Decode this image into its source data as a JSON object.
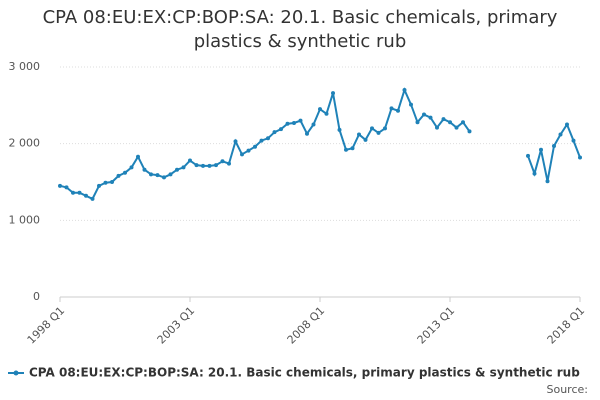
{
  "chart_data": {
    "type": "line",
    "title": "CPA 08:EU:EX:CP:BOP:SA: 20.1. Basic chemicals, primary plastics & synthetic rub",
    "source": "Source:",
    "categories": [
      "1998 Q1",
      null,
      null,
      null,
      null,
      null,
      null,
      null,
      null,
      null,
      null,
      null,
      null,
      null,
      null,
      null,
      null,
      null,
      null,
      null,
      "2003 Q1",
      null,
      null,
      null,
      null,
      null,
      null,
      null,
      null,
      null,
      null,
      null,
      null,
      null,
      null,
      null,
      null,
      null,
      null,
      null,
      "2008 Q1",
      null,
      null,
      null,
      null,
      null,
      null,
      null,
      null,
      null,
      null,
      null,
      null,
      null,
      null,
      null,
      null,
      null,
      null,
      null,
      "2013 Q1",
      null,
      null,
      null,
      null,
      null,
      null,
      null,
      null,
      null,
      null,
      null,
      null,
      null,
      null,
      null,
      null,
      null,
      null,
      null,
      "2018 Q1"
    ],
    "series": [
      {
        "name": "CPA 08:EU:EX:CP:BOP:SA: 20.1. Basic chemicals, primary plastics & synthetic rub",
        "color": "#1f82b8",
        "values": [
          1450,
          1430,
          1360,
          1360,
          1320,
          1280,
          1450,
          1490,
          1500,
          1580,
          1620,
          1690,
          1830,
          1660,
          1600,
          1590,
          1560,
          1600,
          1660,
          1690,
          1780,
          1720,
          1710,
          1710,
          1720,
          1770,
          1740,
          2030,
          1860,
          1910,
          1960,
          2040,
          2070,
          2150,
          2190,
          2260,
          2270,
          2300,
          2130,
          2250,
          2450,
          2390,
          2660,
          2180,
          1920,
          1940,
          2120,
          2050,
          2200,
          2140,
          2200,
          2460,
          2430,
          2700,
          2510,
          2280,
          2380,
          2340,
          2210,
          2320,
          2280,
          2210,
          2280,
          2160,
          null,
          null,
          null,
          null,
          null,
          null,
          null,
          null,
          1840,
          1610,
          1920,
          1510,
          1970,
          2120,
          2250,
          2040,
          1820
        ]
      }
    ],
    "ylim": [
      0,
      3000
    ],
    "yticks": [
      0,
      {
        "value": 1000,
        "label": "1 000"
      },
      {
        "value": 2000,
        "label": "2 000"
      },
      {
        "value": 3000,
        "label": "3 000"
      }
    ],
    "grid": true,
    "legend": "bottom"
  }
}
